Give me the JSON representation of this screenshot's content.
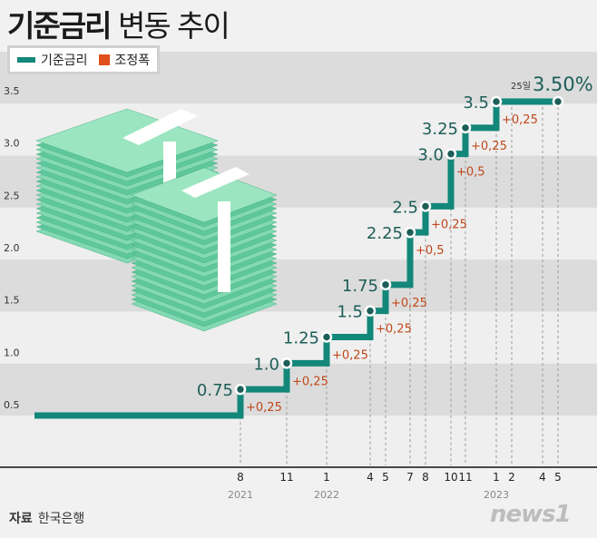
{
  "title": {
    "bold": "기준금리",
    "regular": "변동 추이"
  },
  "legend": [
    {
      "label": "기준금리",
      "color": "#12877a"
    },
    {
      "label": "조정폭",
      "color": "#e0501c"
    }
  ],
  "source": {
    "label": "자료",
    "value": "한국은행"
  },
  "logo": "news1",
  "chart_data": {
    "type": "line",
    "subtype": "step",
    "ylim": [
      0,
      3.5
    ],
    "y_ticks": [
      "0.5",
      "1.0",
      "1.5",
      "2.0",
      "2.5",
      "3.0",
      "3.5"
    ],
    "grid": "alternating horizontal bands",
    "x_ticks": [
      {
        "month": "8",
        "year": "2021"
      },
      {
        "month": "11",
        "year": ""
      },
      {
        "month": "1",
        "year": "2022"
      },
      {
        "month": "4",
        "year": ""
      },
      {
        "month": "5",
        "year": ""
      },
      {
        "month": "7",
        "year": ""
      },
      {
        "month": "8",
        "year": ""
      },
      {
        "month": "10",
        "year": ""
      },
      {
        "month": "11",
        "year": ""
      },
      {
        "month": "1",
        "year": "2023"
      },
      {
        "month": "2",
        "year": ""
      },
      {
        "month": "4",
        "year": ""
      },
      {
        "month": "5",
        "year": ""
      }
    ],
    "start_value": 0.5,
    "points": [
      {
        "x": "2021-08",
        "value": 0.75,
        "label": "0.75",
        "change": "+0,25"
      },
      {
        "x": "2021-11",
        "value": 1.0,
        "label": "1.0",
        "change": "+0,25"
      },
      {
        "x": "2022-01",
        "value": 1.25,
        "label": "1.25",
        "change": "+0,25"
      },
      {
        "x": "2022-04",
        "value": 1.5,
        "label": "1.5",
        "change": "+0,25"
      },
      {
        "x": "2022-05",
        "value": 1.75,
        "label": "1.75",
        "change": "+0,25"
      },
      {
        "x": "2022-07",
        "value": 2.25,
        "label": "2.25",
        "change": "+0,5"
      },
      {
        "x": "2022-08",
        "value": 2.5,
        "label": "2.5",
        "change": "+0,25"
      },
      {
        "x": "2022-10",
        "value": 3.0,
        "label": "3.0",
        "change": "+0,5"
      },
      {
        "x": "2022-11",
        "value": 3.25,
        "label": "3.25",
        "change": "+0,25"
      },
      {
        "x": "2023-01",
        "value": 3.5,
        "label": "3.5",
        "change": "+0,25"
      }
    ],
    "end_point": {
      "x": "2023-05",
      "value": 3.5,
      "day_label": "25일",
      "label": "3.50%"
    },
    "line_color": "#12877a",
    "change_color": "#c0471a"
  }
}
